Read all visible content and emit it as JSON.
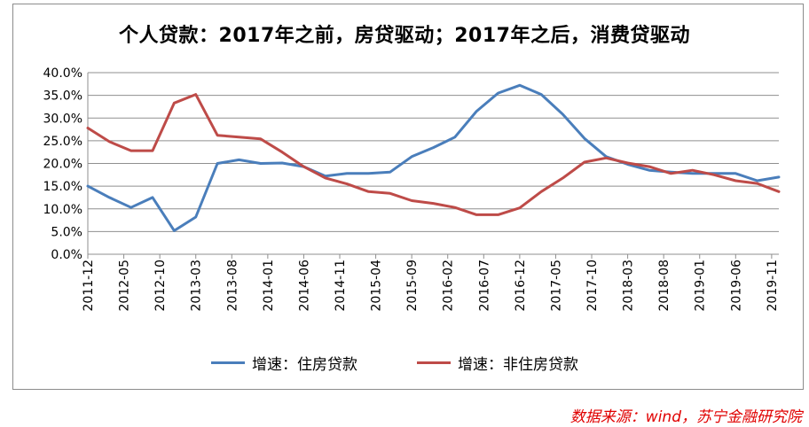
{
  "chart_data": {
    "type": "line",
    "title": "个人贷款：2017年之前，房贷驱动；2017年之后，消费贷驱动",
    "xlabel": "",
    "ylabel": "",
    "ylim": [
      0,
      40
    ],
    "yticks": [
      "0.0%",
      "5.0%",
      "10.0%",
      "15.0%",
      "20.0%",
      "25.0%",
      "30.0%",
      "35.0%",
      "40.0%"
    ],
    "xtick_labels": [
      "2011-12",
      "2012-05",
      "2012-10",
      "2013-03",
      "2013-08",
      "2014-01",
      "2014-06",
      "2014-11",
      "2015-04",
      "2015-09",
      "2016-02",
      "2016-07",
      "2016-12",
      "2017-05",
      "2017-10",
      "2018-03",
      "2018-08",
      "2019-01",
      "2019-06",
      "2019-11"
    ],
    "grid": true,
    "legend_position": "bottom",
    "x": [
      "2011-12",
      "2012-03",
      "2012-06",
      "2012-09",
      "2012-12",
      "2013-03",
      "2013-06",
      "2013-09",
      "2013-12",
      "2014-03",
      "2014-06",
      "2014-09",
      "2014-12",
      "2015-03",
      "2015-06",
      "2015-09",
      "2015-12",
      "2016-03",
      "2016-06",
      "2016-09",
      "2016-12",
      "2017-03",
      "2017-06",
      "2017-09",
      "2017-12",
      "2018-03",
      "2018-06",
      "2018-09",
      "2018-12",
      "2019-03",
      "2019-06",
      "2019-09",
      "2019-12"
    ],
    "series": [
      {
        "name": "增速：住房贷款",
        "color": "#4a7ebb",
        "values": [
          15.0,
          12.5,
          10.3,
          12.5,
          5.2,
          8.2,
          20.0,
          20.8,
          20.0,
          20.1,
          19.3,
          17.2,
          17.8,
          17.8,
          18.1,
          21.5,
          23.5,
          25.8,
          31.5,
          35.5,
          37.2,
          35.2,
          30.8,
          25.5,
          21.5,
          19.8,
          18.5,
          18.1,
          17.8,
          17.8,
          17.8,
          16.2,
          17.0
        ]
      },
      {
        "name": "增速：非住房贷款",
        "color": "#be4b48",
        "values": [
          27.8,
          24.8,
          22.8,
          22.8,
          33.3,
          35.2,
          26.2,
          25.8,
          25.4,
          22.5,
          19.3,
          16.8,
          15.5,
          13.8,
          13.4,
          11.8,
          11.2,
          10.3,
          8.7,
          8.7,
          10.2,
          13.8,
          16.8,
          20.3,
          21.2,
          20.1,
          19.3,
          17.8,
          18.5,
          17.5,
          16.2,
          15.6,
          13.8
        ]
      }
    ]
  },
  "source_note": "数据来源：wind，苏宁金融研究院"
}
